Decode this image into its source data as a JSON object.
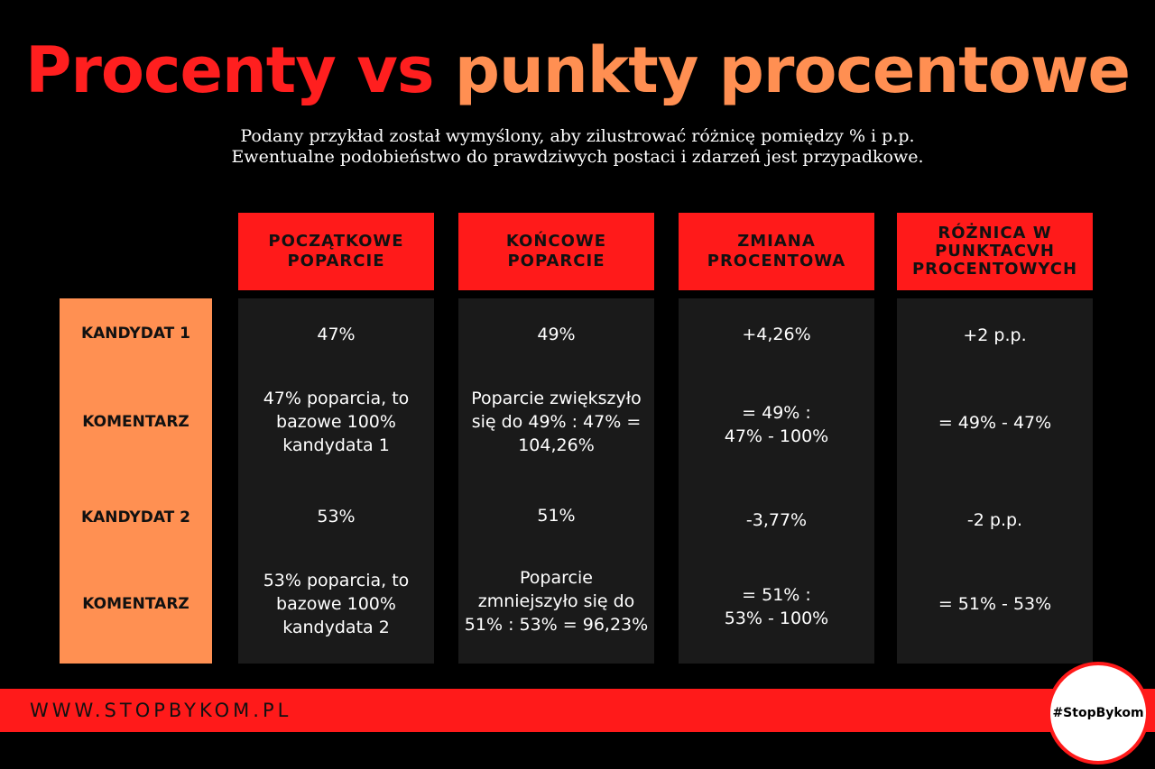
{
  "title": {
    "part1": "Procenty vs",
    "part2": "punkty procentowe"
  },
  "subtitle": {
    "line1": "Podany przykład został wymyślony, aby zilustrować różnicę pomiędzy % i p.p.",
    "line2": "Ewentualne podobieństwo do prawdziwych postaci i zdarzeń jest przypadkowe."
  },
  "headers": [
    [
      "POCZĄTKOWE",
      "POPARCIE"
    ],
    [
      "KOŃCOWE",
      "POPARCIE"
    ],
    [
      "ZMIANA",
      "PROCENTOWA"
    ],
    [
      "RÓŻNICA W",
      "PUNKTACVH",
      "PROCENTOWYCH"
    ]
  ],
  "row_labels": [
    "KANDYDAT 1",
    "KOMENTARZ",
    "KANDYDAT 2",
    "KOMENTARZ"
  ],
  "cells": [
    [
      [
        "47%"
      ],
      [
        "47% poparcia, to",
        "bazowe 100%",
        "kandydata 1"
      ],
      [
        "53%"
      ],
      [
        "53% poparcia, to",
        "bazowe 100%",
        "kandydata 2"
      ]
    ],
    [
      [
        "49%"
      ],
      [
        "Poparcie zwiększyło",
        "się do 49% : 47% =",
        "104,26%"
      ],
      [
        "51%"
      ],
      [
        "Poparcie",
        "zmniejszyło się do",
        "51% : 53% = 96,23%"
      ]
    ],
    [
      [
        "+4,26%"
      ],
      [
        "= 49% :",
        "47% - 100%"
      ],
      [
        "-3,77%"
      ],
      [
        "= 51% :",
        "53% - 100%"
      ]
    ],
    [
      [
        "+2 p.p."
      ],
      [
        "= 49% - 47%"
      ],
      [
        "-2 p.p."
      ],
      [
        "= 51% - 53%"
      ]
    ]
  ],
  "footer": {
    "url": "WWW.STOPBYKOM.PL",
    "badge": "#StopBykom"
  },
  "colors": {
    "red": "#ff1a1a",
    "orange": "#ff9052",
    "cell_bg": "#1a1a1a",
    "background": "#000000"
  }
}
